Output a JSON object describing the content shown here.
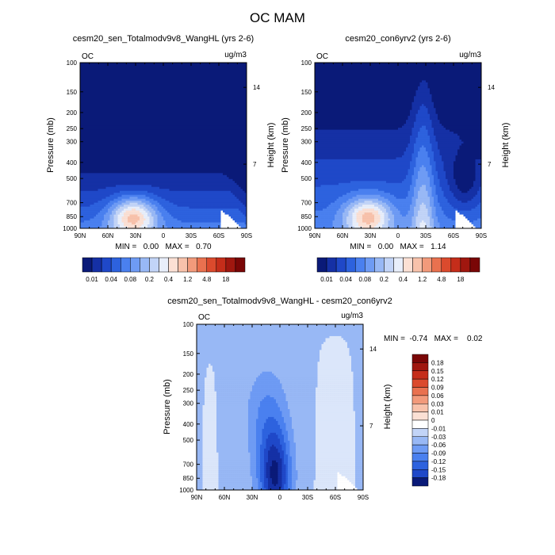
{
  "figure": {
    "title": "OC MAM"
  },
  "chart_data": [
    {
      "type": "heatmap",
      "title": "cesm20_sen_Totalmodv9v8_WangHL (yrs 2-6)",
      "var_label": "OC",
      "units": "ug/m3",
      "ylabel": "Pressure (mb)",
      "ylabel_right": "Height (km)",
      "x_ticks": [
        "90N",
        "60N",
        "30N",
        "0",
        "30S",
        "60S",
        "90S"
      ],
      "y_ticks": [
        "100",
        "150",
        "200",
        "250",
        "300",
        "400",
        "500",
        "700",
        "850",
        "1000"
      ],
      "y_ticks_right": [
        "14",
        "7"
      ],
      "xlim": [
        90,
        -90
      ],
      "ylim": [
        100,
        1000
      ],
      "min_max": "MIN =   0.00   MAX =   0.70",
      "colorbar_labels": [
        "0.01",
        "0.04",
        "0.08",
        "0.2",
        "0.4",
        "1.2",
        "4.8",
        "18"
      ],
      "colorbar_colors": [
        "#0a1a78",
        "#1530a5",
        "#1f48c8",
        "#2d62de",
        "#4a80ef",
        "#6e9bf4",
        "#98b8f5",
        "#c2d4f7",
        "#e8eefa",
        "#fbe0d4",
        "#f8c2ab",
        "#f29a7b",
        "#e9714f",
        "#db4a2d",
        "#c52d1a",
        "#a0170f",
        "#7a0606"
      ],
      "fields": {
        "a": 1.55,
        "b": 0.55,
        "c": 0.45,
        "d": 1.85,
        "e": 0.0,
        "f": 1.6,
        "g": 0.0
      }
    },
    {
      "type": "heatmap",
      "title": "cesm20_con6yrv2 (yrs 2-6)",
      "var_label": "OC",
      "units": "ug/m3",
      "ylabel": "Pressure (mb)",
      "ylabel_right": "Height (km)",
      "x_ticks": [
        "90N",
        "60N",
        "30N",
        "0",
        "30S",
        "60S",
        "90S"
      ],
      "y_ticks": [
        "100",
        "150",
        "200",
        "250",
        "300",
        "400",
        "500",
        "700",
        "850",
        "1000"
      ],
      "y_ticks_right": [
        "14",
        "7"
      ],
      "xlim": [
        90,
        -90
      ],
      "ylim": [
        100,
        1000
      ],
      "min_max": "MIN =   0.00   MAX =   1.14",
      "colorbar_labels": [
        "0.01",
        "0.04",
        "0.08",
        "0.2",
        "0.4",
        "1.2",
        "4.8",
        "18"
      ],
      "colorbar_colors": [
        "#0a1a78",
        "#1530a5",
        "#1f48c8",
        "#2d62de",
        "#4a80ef",
        "#6e9bf4",
        "#98b8f5",
        "#c2d4f7",
        "#e8eefa",
        "#fbe0d4",
        "#f8c2ab",
        "#f29a7b",
        "#e9714f",
        "#db4a2d",
        "#c52d1a",
        "#a0170f",
        "#7a0606"
      ],
      "fields": {
        "a": 1.3,
        "b": 0.55,
        "c": 0.7,
        "d": 1.2,
        "e": 0.6,
        "f": 1.5,
        "g": 0.9
      }
    },
    {
      "type": "heatmap",
      "title": "cesm20_sen_Totalmodv9v8_WangHL - cesm20_con6yrv2",
      "var_label": "OC",
      "units": "ug/m3",
      "ylabel": "Pressure (mb)",
      "ylabel_right": "Height (km)",
      "x_ticks": [
        "90N",
        "60N",
        "30N",
        "0",
        "30S",
        "60S",
        "90S"
      ],
      "y_ticks": [
        "100",
        "150",
        "200",
        "250",
        "300",
        "400",
        "500",
        "700",
        "850",
        "1000"
      ],
      "y_ticks_right": [
        "14",
        "7"
      ],
      "xlim": [
        90,
        -90
      ],
      "ylim": [
        100,
        1000
      ],
      "min_max": "MIN =  -0.74   MAX =    0.02",
      "colorbar_labels": [
        "0.18",
        "0.15",
        "0.12",
        "0.09",
        "0.06",
        "0.03",
        "0.01",
        "0",
        "-0.01",
        "-0.03",
        "-0.06",
        "-0.09",
        "-0.12",
        "-0.15",
        "-0.18"
      ],
      "colorbar_colors": [
        "#7a0606",
        "#a0170f",
        "#c52d1a",
        "#db4a2d",
        "#e9714f",
        "#f29a7b",
        "#f8c2ab",
        "#fbe0d4",
        "#ffffff",
        "#c2d4f7",
        "#98b8f5",
        "#6e9bf4",
        "#4a80ef",
        "#2d62de",
        "#1f48c8",
        "#0a1a78"
      ]
    }
  ]
}
